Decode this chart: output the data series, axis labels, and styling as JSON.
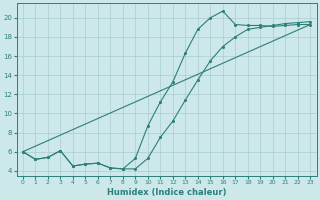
{
  "xlabel": "Humidex (Indice chaleur)",
  "ylabel": "",
  "xlim": [
    -0.5,
    23.5
  ],
  "ylim": [
    3.5,
    21.5
  ],
  "xticks": [
    0,
    1,
    2,
    3,
    4,
    5,
    6,
    7,
    8,
    9,
    10,
    11,
    12,
    13,
    14,
    15,
    16,
    17,
    18,
    19,
    20,
    21,
    22,
    23
  ],
  "yticks": [
    4,
    6,
    8,
    10,
    12,
    14,
    16,
    18,
    20
  ],
  "bg_color": "#cce8ea",
  "grid_color": "#aacccc",
  "line_color": "#2d7f7a",
  "curve1_x": [
    0,
    1,
    2,
    3,
    4,
    5,
    6,
    7,
    8,
    9,
    10,
    11,
    12,
    13,
    14,
    15,
    16,
    17,
    18,
    19,
    20,
    21,
    22,
    23
  ],
  "curve1_y": [
    6.0,
    5.2,
    5.4,
    6.1,
    4.5,
    4.7,
    4.8,
    4.3,
    4.2,
    5.3,
    8.7,
    11.2,
    13.3,
    16.3,
    18.8,
    20.0,
    20.7,
    19.3,
    19.2,
    19.2,
    19.1,
    19.2,
    19.3,
    19.3
  ],
  "curve2_x": [
    0,
    1,
    2,
    3,
    4,
    5,
    6,
    7,
    8,
    9,
    10,
    11,
    12,
    13,
    14,
    15,
    16,
    17,
    18,
    19,
    20,
    21,
    22,
    23
  ],
  "curve2_y": [
    6.0,
    5.2,
    5.4,
    6.1,
    4.5,
    4.7,
    4.8,
    4.3,
    4.2,
    4.2,
    5.3,
    7.5,
    9.2,
    11.4,
    13.5,
    15.5,
    17.0,
    18.0,
    18.8,
    19.0,
    19.2,
    19.4,
    19.5,
    19.6
  ],
  "curve3_x": [
    0,
    23
  ],
  "curve3_y": [
    6.0,
    19.3
  ]
}
